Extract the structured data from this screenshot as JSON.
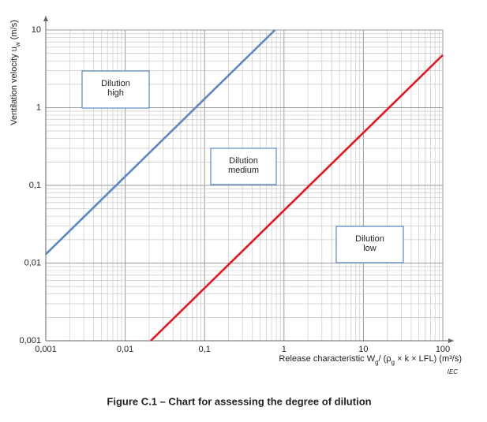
{
  "chart_data": {
    "type": "line",
    "caption": "Figure C.1 – Chart for assessing the degree of dilution",
    "source": "IEC",
    "y_label": [
      "Ventilation velocity u",
      "w",
      "  (m/s)"
    ],
    "x_label": [
      "Release characteristic W",
      "g",
      "/ (ρ",
      "g",
      " × k × LFL)  (m³/s)"
    ],
    "xscale": "log",
    "yscale": "log",
    "grid": "minor",
    "xlim": [
      0.001,
      100
    ],
    "ylim": [
      0.001,
      10
    ],
    "xticks": [
      {
        "value": 0.001,
        "label": "0,001"
      },
      {
        "value": 0.01,
        "label": "0,01"
      },
      {
        "value": 0.1,
        "label": "0,1"
      },
      1,
      10,
      100
    ],
    "yticks": [
      {
        "value": 0.001,
        "label": "0,001"
      },
      {
        "value": 0.01,
        "label": "0,01"
      },
      {
        "value": 0.1,
        "label": "0,1"
      },
      1,
      10
    ],
    "series": [
      {
        "color": "#5b87c4",
        "x": [
          0.001,
          0.77
        ],
        "values": [
          0.013,
          10
        ]
      },
      {
        "color": "#e8141c",
        "x": [
          0.021,
          100
        ],
        "values": [
          0.001,
          4.76
        ]
      }
    ],
    "annotations": [
      [
        "Dilution",
        "high"
      ],
      [
        "Dilution",
        "medium"
      ],
      [
        "Dilution",
        "low"
      ]
    ]
  }
}
